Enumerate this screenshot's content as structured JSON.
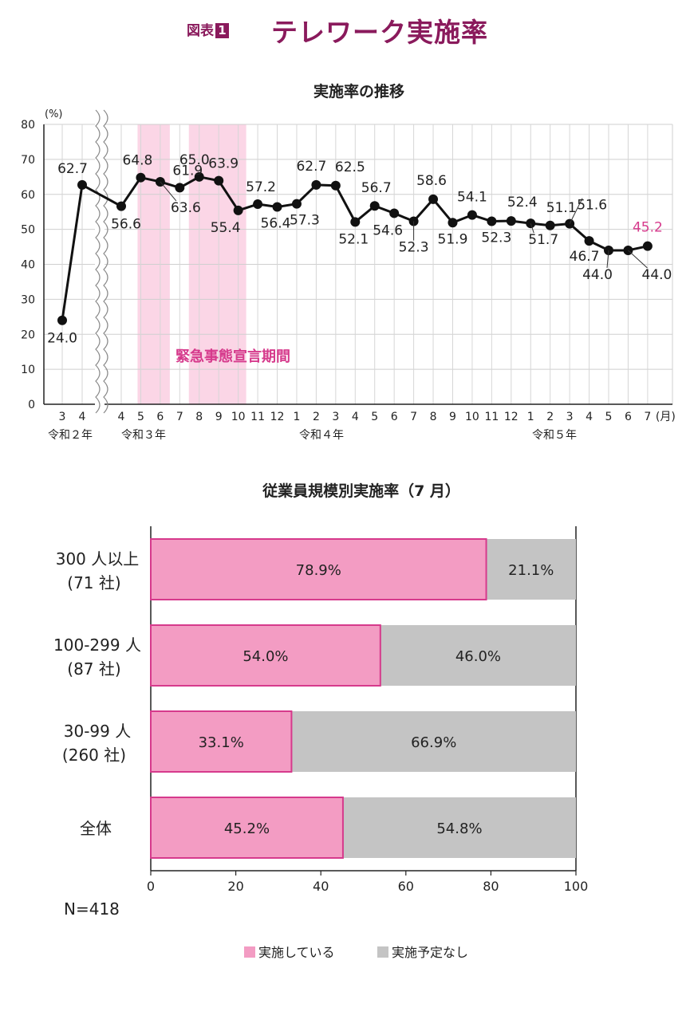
{
  "header": {
    "figure_label": "図表",
    "figure_number": "1",
    "title": "テレワーク実施率"
  },
  "colors": {
    "accent": "#8a1a5c",
    "highlight": "#d63a8c",
    "pink_fill": "#f39cc3",
    "pink_band": "#fbd6e6",
    "gray_fill": "#c4c4c4",
    "line": "#111111"
  },
  "chart_data": [
    {
      "type": "line",
      "title": "実施率の推移",
      "ylabel": "(%)",
      "ylim": [
        0,
        80
      ],
      "yticks": [
        "0",
        "10",
        "20",
        "30",
        "40",
        "50",
        "60",
        "70",
        "80"
      ],
      "x_unit": "(月)",
      "grid": true,
      "categories": [
        "3",
        "4",
        "4",
        "5",
        "6",
        "7",
        "8",
        "9",
        "10",
        "11",
        "12",
        "1",
        "2",
        "3",
        "4",
        "5",
        "6",
        "7",
        "8",
        "9",
        "10",
        "11",
        "12",
        "1",
        "2",
        "3",
        "4",
        "5",
        "6",
        "7"
      ],
      "year_labels": [
        "令和２年",
        "令和３年",
        "令和４年",
        "令和５年"
      ],
      "values": [
        24.0,
        62.7,
        56.6,
        64.8,
        63.6,
        61.9,
        65.0,
        63.9,
        55.4,
        57.2,
        56.4,
        57.3,
        62.7,
        62.5,
        52.1,
        56.7,
        54.6,
        52.3,
        58.6,
        51.9,
        54.1,
        52.3,
        52.4,
        51.7,
        51.1,
        51.6,
        46.7,
        44.0,
        44.0,
        45.2
      ],
      "data_labels": [
        "24.0",
        "62.7",
        "56.6",
        "64.8",
        "63.6",
        "61.9",
        "65.0",
        "63.9",
        "55.4",
        "57.2",
        "56.4",
        "57.3",
        "62.7",
        "62.5",
        "52.1",
        "56.7",
        "54.6",
        "52.3",
        "58.6",
        "51.9",
        "54.1",
        "52.3",
        "52.4",
        "51.7",
        "51.1",
        "51.6",
        "46.7",
        "44.0",
        "44.0",
        "45.2"
      ],
      "band_label": "緊急事態宣言期間",
      "highlight_last": true
    },
    {
      "type": "bar",
      "stacked": true,
      "orientation": "horizontal",
      "title": "従業員規模別実施率（7 月）",
      "categories": [
        {
          "line1": "300 人以上",
          "line2": "(71 社)"
        },
        {
          "line1": "100-299 人",
          "line2": "(87 社)"
        },
        {
          "line1": "30-99 人",
          "line2": "(260 社)"
        },
        {
          "line1": "全体",
          "line2": ""
        }
      ],
      "series": [
        {
          "name": "実施している",
          "values": [
            78.9,
            54.0,
            33.1,
            45.2
          ],
          "labels": [
            "78.9%",
            "54.0%",
            "33.1%",
            "45.2%"
          ],
          "color": "#f39cc3"
        },
        {
          "name": "実施予定なし",
          "values": [
            21.1,
            46.0,
            66.9,
            54.8
          ],
          "labels": [
            "21.1%",
            "46.0%",
            "66.9%",
            "54.8%"
          ],
          "color": "#c4c4c4"
        }
      ],
      "xlim": [
        0,
        100
      ],
      "xticks": [
        "0",
        "20",
        "40",
        "60",
        "80",
        "100"
      ],
      "note": "N=418",
      "legend_position": "bottom"
    }
  ]
}
